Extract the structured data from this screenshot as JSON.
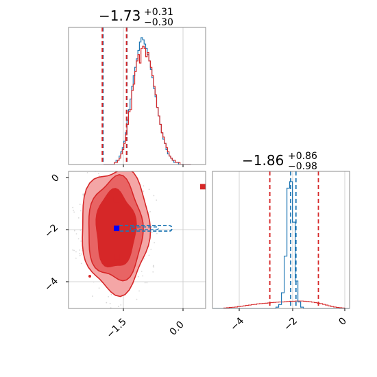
{
  "chart_data": {
    "type": "corner",
    "colors": {
      "series_a": "#d62728",
      "series_b": "#1f77b4"
    },
    "param_1": {
      "title": {
        "median": "−1.73",
        "upper": "+0.31",
        "lower": "−0.30"
      },
      "range": [
        -2.0,
        0.2
      ],
      "ticks": [
        -1.5,
        0.0
      ],
      "tick_labels": [
        "−1.5",
        "0.0"
      ],
      "quantiles_red": [
        -2.03,
        -1.42
      ],
      "quantiles_blue": [
        -2.03,
        -1.43
      ],
      "hist_red": [
        0,
        0,
        0,
        0,
        0,
        0,
        0,
        1,
        1,
        2,
        3,
        5,
        7,
        10,
        14,
        19,
        25,
        26,
        35,
        38,
        44,
        49,
        52,
        48,
        55,
        56,
        55,
        51,
        53,
        49,
        46,
        42,
        37,
        33,
        27,
        23,
        19,
        15,
        13,
        10,
        8,
        6,
        4,
        3,
        2,
        2,
        1,
        1,
        1,
        0,
        0,
        0,
        0,
        0,
        0,
        0
      ],
      "hist_blue": [
        0,
        0,
        0,
        0,
        0,
        0,
        0,
        1,
        2,
        2,
        4,
        6,
        8,
        11,
        15,
        21,
        26,
        31,
        37,
        42,
        46,
        50,
        54,
        58,
        60,
        59,
        57,
        55,
        52,
        49,
        45,
        41,
        36,
        32,
        27,
        23,
        19,
        15,
        12,
        10,
        7,
        5,
        4,
        3,
        2,
        1,
        1,
        1,
        0,
        0,
        0,
        0,
        0,
        0,
        0,
        0
      ]
    },
    "param_2": {
      "title": {
        "median": "−1.86",
        "upper": "+0.86",
        "lower": "−0.98"
      },
      "range": [
        -5.0,
        0.2
      ],
      "ticks": [
        -4,
        -2,
        0
      ],
      "tick_labels": [
        "−4",
        "−2",
        "0"
      ],
      "quantiles_red": [
        -2.84,
        -1.0
      ],
      "quantiles_blue": [
        -2.05,
        -1.85
      ],
      "hist_red": [
        0,
        0,
        0,
        0,
        0.002,
        0.003,
        0.004,
        0.005,
        0.006,
        0.008,
        0.009,
        0.011,
        0.013,
        0.014,
        0.016,
        0.017,
        0.019,
        0.02,
        0.021,
        0.022,
        0.023,
        0.024,
        0.025,
        0.026,
        0.027,
        0.027,
        0.028,
        0.029,
        0.03,
        0.03,
        0.031,
        0.031,
        0.031,
        0.03,
        0.029,
        0.028,
        0.026,
        0.024,
        0.022,
        0.02,
        0.017,
        0.014,
        0.011,
        0.008,
        0.006,
        0.004,
        0.003,
        0.002,
        0,
        0
      ],
      "hist_blue": [
        0,
        0,
        0,
        0,
        0,
        0,
        0,
        0,
        0,
        0,
        0,
        0,
        0,
        0,
        0,
        0,
        0,
        0,
        0,
        0,
        0,
        0,
        0,
        0.01,
        0.03,
        0.12,
        0.4,
        0.92,
        0.97,
        0.66,
        0.21,
        0.05,
        0.01,
        0,
        0,
        0,
        0,
        0,
        0,
        0,
        0,
        0,
        0,
        0,
        0,
        0,
        0,
        0,
        0,
        0
      ]
    },
    "markers_red": [
      [
        -1.68,
        -0.85
      ],
      [
        -1.69,
        -1.85
      ],
      [
        -1.66,
        -3.05
      ],
      [
        0.2,
        -0.35
      ]
    ],
    "markers_blue": [
      [
        -1.67,
        -1.95
      ]
    ],
    "contour_red_center": [
      -1.7,
      -2.0
    ],
    "contour_red_radii": [
      [
        0.45,
        1.15
      ],
      [
        0.36,
        0.95
      ],
      [
        0.26,
        0.72
      ]
    ],
    "contour_blue": {
      "x_range": [
        -1.93,
        -0.45
      ],
      "y_center": -1.95,
      "half_height": 0.1
    }
  }
}
